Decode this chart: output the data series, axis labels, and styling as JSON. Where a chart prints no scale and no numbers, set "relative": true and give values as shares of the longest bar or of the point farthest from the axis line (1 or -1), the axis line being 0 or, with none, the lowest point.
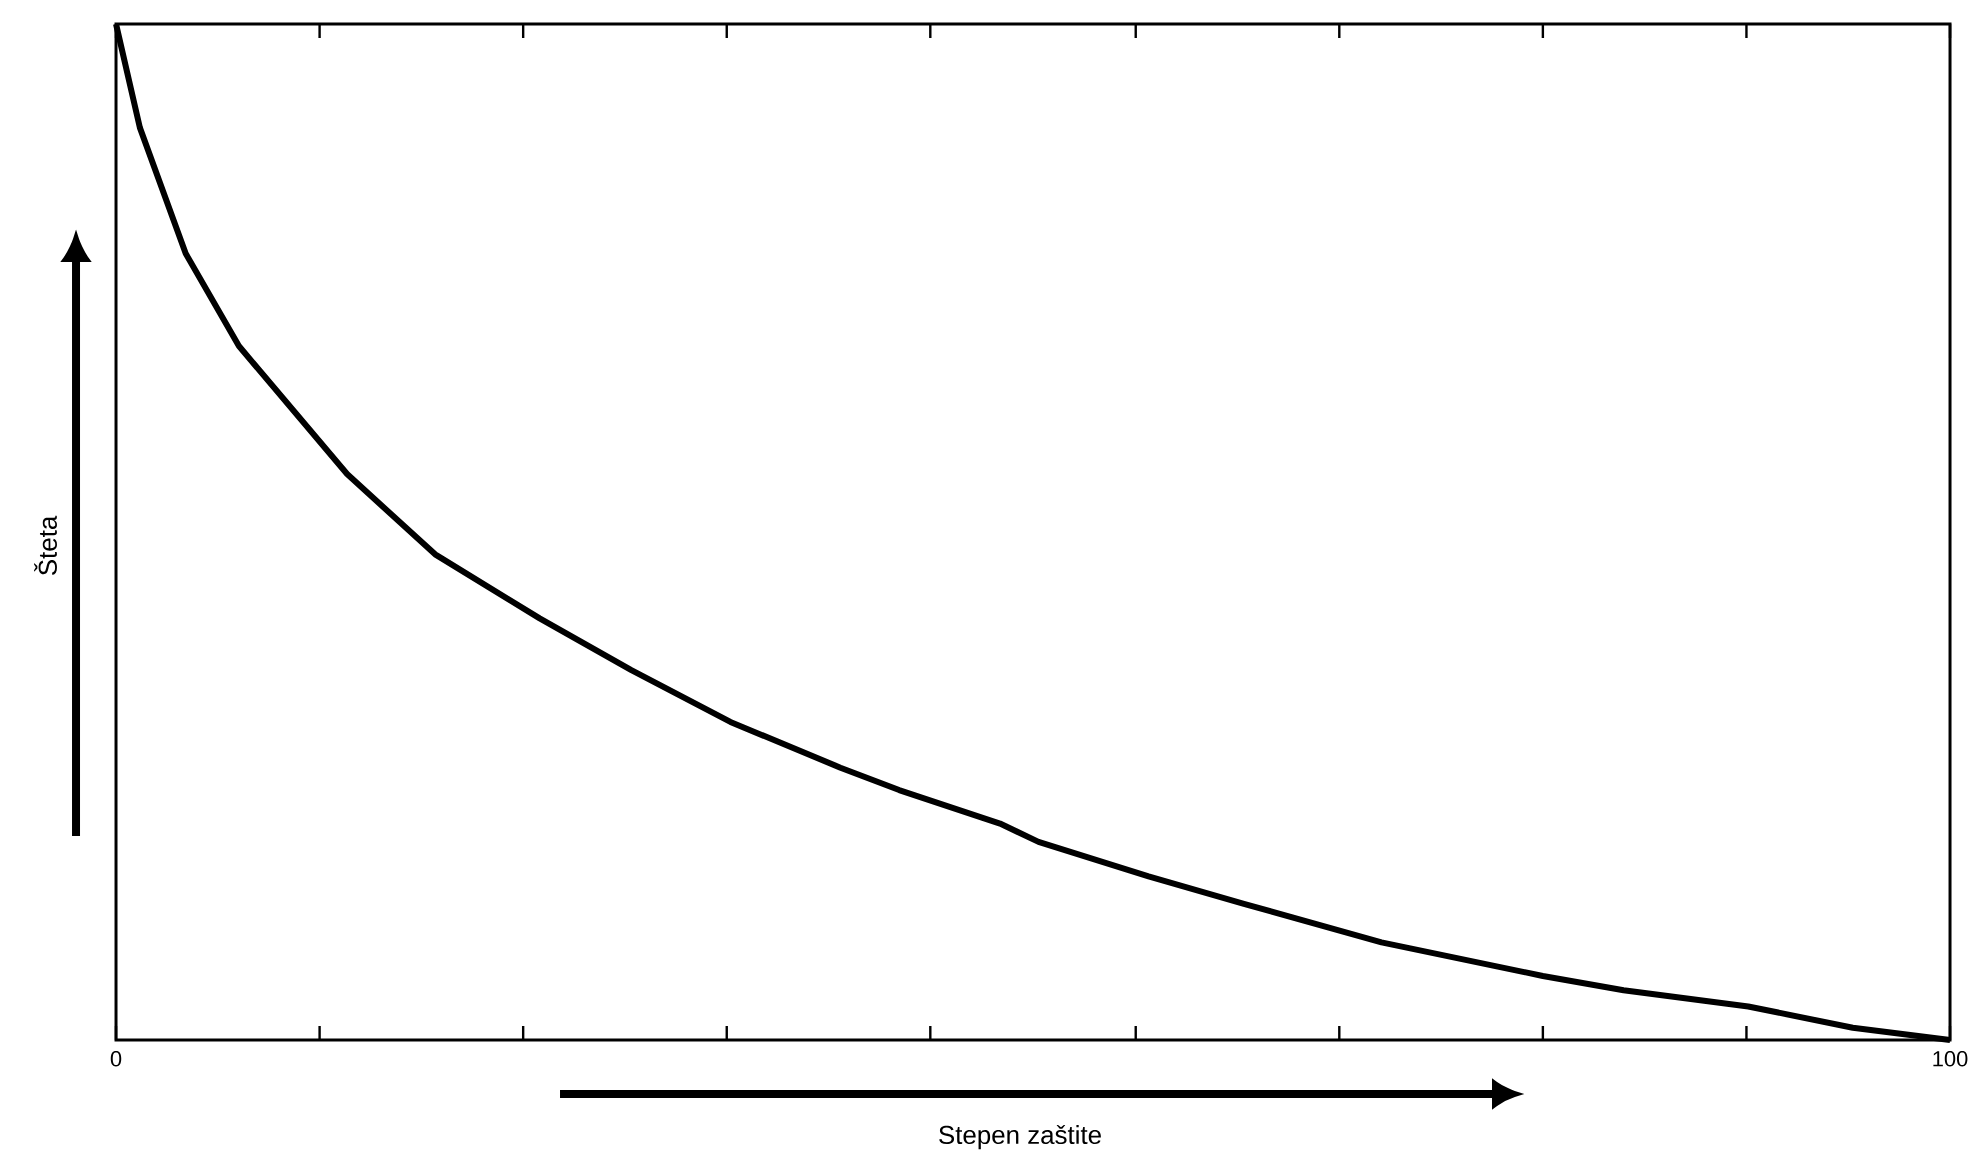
{
  "chart_data": {
    "type": "line",
    "xlabel": "Stepen zaštite",
    "ylabel": "Šteta",
    "relative": true,
    "x": [
      0,
      1.3,
      3.8,
      6.7,
      12.6,
      17.4,
      23.1,
      28.1,
      33.5,
      39.5,
      42.7,
      48.2,
      50.3,
      56.3,
      61.5,
      69.0,
      77.8,
      82.2,
      89.0,
      94.7,
      100
    ],
    "series": [
      {
        "color": "#000000",
        "values": [
          1.0,
          0.898,
          0.774,
          0.683,
          0.557,
          0.478,
          0.415,
          0.364,
          0.313,
          0.268,
          0.246,
          0.213,
          0.195,
          0.161,
          0.134,
          0.096,
          0.063,
          0.049,
          0.033,
          0.012,
          0.0
        ]
      }
    ],
    "xlim": [
      0,
      100
    ],
    "xticks": [
      0,
      {
        "value": 11.1,
        "label": null
      },
      {
        "value": 22.2,
        "label": null
      },
      {
        "value": 33.3,
        "label": null
      },
      {
        "value": 44.4,
        "label": null
      },
      {
        "value": 55.6,
        "label": null
      },
      {
        "value": 66.7,
        "label": null
      },
      {
        "value": 77.8,
        "label": null
      },
      {
        "value": 88.9,
        "label": null
      },
      100
    ],
    "tick_labels": "x",
    "grid": false,
    "marker": "none",
    "line_style": "solid"
  }
}
